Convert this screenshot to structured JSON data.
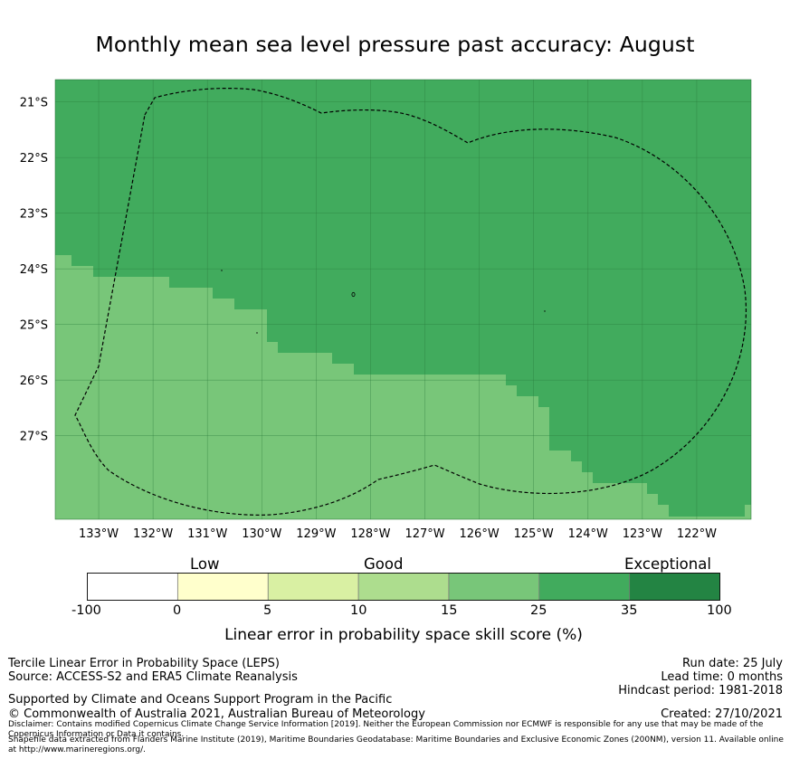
{
  "title": "Monthly mean sea level pressure past accuracy: August",
  "map": {
    "lat_ticks": [
      "21°S",
      "22°S",
      "23°S",
      "24°S",
      "25°S",
      "26°S",
      "27°S"
    ],
    "lon_ticks": [
      "133°W",
      "132°W",
      "131°W",
      "130°W",
      "129°W",
      "128°W",
      "127°W",
      "126°W",
      "125°W",
      "124°W",
      "123°W",
      "122°W"
    ],
    "lon_range": [
      -133.8,
      -121.0
    ],
    "lat_range": [
      -28.5,
      -20.6
    ],
    "categories_shown": [
      "15-25",
      "25-35"
    ],
    "boundary": "Pitcairn Islands Exclusive Economic Zone (dashed)",
    "colors": {
      "band_15_25": "#78c679",
      "band_25_35": "#41ab5d"
    }
  },
  "legend": {
    "headings": [
      "Low",
      "Good",
      "Exceptional"
    ],
    "bins": [
      {
        "from": "-100",
        "to": "0",
        "color": "#ffffff"
      },
      {
        "from": "0",
        "to": "5",
        "color": "#ffffcc"
      },
      {
        "from": "5",
        "to": "10",
        "color": "#d9f0a3"
      },
      {
        "from": "10",
        "to": "15",
        "color": "#addd8e"
      },
      {
        "from": "15",
        "to": "25",
        "color": "#78c679"
      },
      {
        "from": "25",
        "to": "35",
        "color": "#41ab5d"
      },
      {
        "from": "35",
        "to": "100",
        "color": "#238443"
      }
    ],
    "tick_labels": [
      "-100",
      "0",
      "5",
      "10",
      "15",
      "25",
      "35",
      "100"
    ],
    "title": "Linear error in probability space skill score (%)"
  },
  "footer": {
    "left": [
      "Tercile Linear Error in Probability Space (LEPS)",
      "Source: ACCESS-S2 and ERA5 Climate Reanalysis"
    ],
    "supported": "Supported by Climate and Oceans Support Program in the Pacific",
    "copyright": "© Commonwealth of Australia 2021, Australian Bureau of Meteorology",
    "right": [
      "Run date: 25 July",
      "Lead time: 0 months",
      "Hindcast period: 1981-2018"
    ],
    "created": "Created: 27/10/2021",
    "disclaimer": "Disclaimer: Contains modified Copernicus Climate Change Service Information [2019]. Neither the European Commission nor ECMWF is responsible for any use that may be made of the Copernicus Information or Data it contains.",
    "shapefile": "Shapefile data extracted from Flanders Marine Institute (2019), Maritime Boundaries Geodatabase: Maritime Boundaries and Exclusive Economic Zones (200NM), version 11. Available online at http://www.marineregions.org/."
  }
}
